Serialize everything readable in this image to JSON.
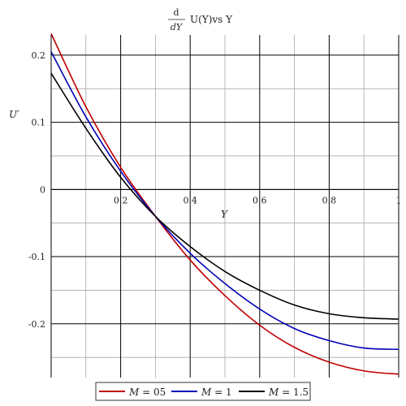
{
  "chart_data": {
    "type": "line",
    "title": {
      "numerator": "d",
      "denominator": "dY",
      "main": "U(Y)vs Y"
    },
    "xlabel": "Y",
    "ylabel": "U′",
    "xlim": [
      0,
      1
    ],
    "ylim": [
      -0.28,
      0.23
    ],
    "grid": true,
    "x_ticks": [
      {
        "value": 0.2,
        "label": "0.2"
      },
      {
        "value": 0.4,
        "label": "0.4"
      },
      {
        "value": 0.6,
        "label": "0.6"
      },
      {
        "value": 0.8,
        "label": "0.8"
      },
      {
        "value": 1.0,
        "label": "1"
      }
    ],
    "y_ticks": [
      {
        "value": 0.2,
        "label": "0.2"
      },
      {
        "value": 0.1,
        "label": "0.1"
      },
      {
        "value": 0,
        "label": "0"
      },
      {
        "value": -0.1,
        "label": "-0.1"
      },
      {
        "value": -0.2,
        "label": "-0.2"
      }
    ],
    "legend_position": "bottom",
    "x": [
      0,
      0.1,
      0.2,
      0.3,
      0.4,
      0.5,
      0.6,
      0.7,
      0.8,
      0.9,
      1.0
    ],
    "series": [
      {
        "name": "M = 05",
        "legend_var": "M",
        "legend_val": " = 05",
        "color": "#c00000",
        "values": [
          0.232,
          0.123,
          0.033,
          -0.04,
          -0.105,
          -0.158,
          -0.202,
          -0.235,
          -0.257,
          -0.27,
          -0.275
        ]
      },
      {
        "name": "M = 1",
        "legend_var": "M",
        "legend_val": " = 1",
        "color": "#0000b4",
        "values": [
          0.205,
          0.108,
          0.027,
          -0.04,
          -0.095,
          -0.14,
          -0.178,
          -0.207,
          -0.225,
          -0.236,
          -0.238
        ]
      },
      {
        "name": "M = 1.5",
        "legend_var": "M",
        "legend_val": " = 1.5",
        "color": "#000000",
        "values": [
          0.173,
          0.091,
          0.018,
          -0.04,
          -0.085,
          -0.122,
          -0.15,
          -0.172,
          -0.185,
          -0.191,
          -0.193
        ]
      }
    ]
  }
}
